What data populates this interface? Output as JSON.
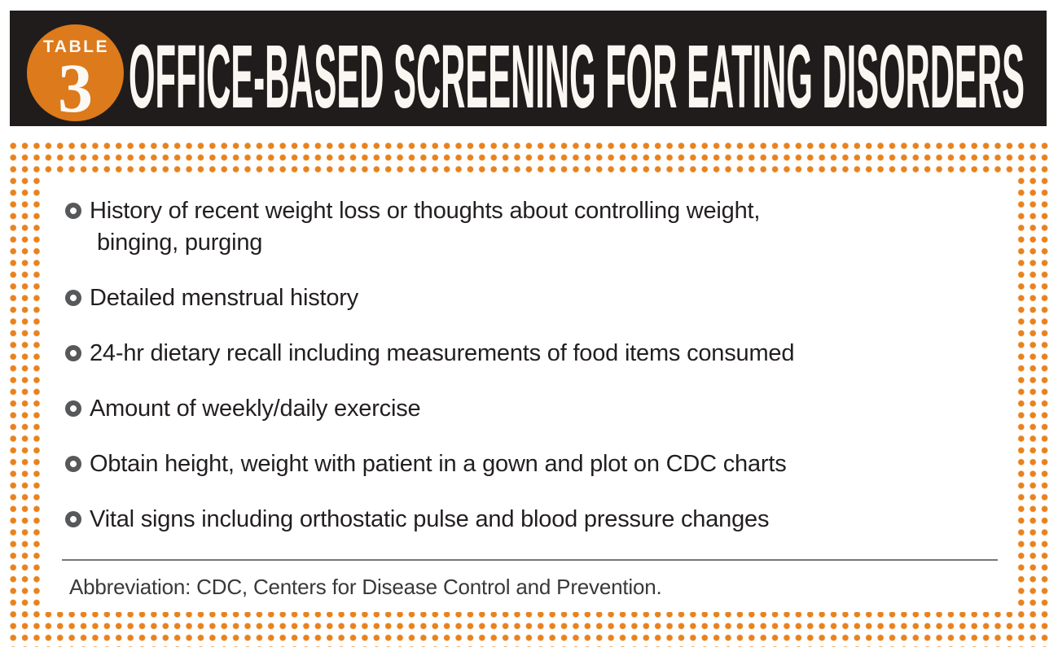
{
  "header": {
    "table_label": "TABLE",
    "table_number": "3",
    "title": "OFFICE-BASED SCREENING FOR EATING DISORDERS"
  },
  "list": {
    "items": [
      {
        "lines": [
          "History of recent weight loss or thoughts about controlling weight,",
          "binging, purging"
        ]
      },
      {
        "lines": [
          "Detailed menstrual history"
        ]
      },
      {
        "lines": [
          "24-hr dietary recall including measurements of food items consumed"
        ]
      },
      {
        "lines": [
          "Amount of weekly/daily exercise"
        ]
      },
      {
        "lines": [
          "Obtain height, weight with patient in a gown and plot on CDC charts"
        ]
      },
      {
        "lines": [
          "Vital signs including orthostatic pulse and blood pressure changes"
        ]
      }
    ]
  },
  "footer": {
    "abbreviation": "Abbreviation: CDC, Centers for Disease Control and Prevention."
  },
  "colors": {
    "accent_orange_dots": "#E8821E",
    "badge_orange": "#DC7A1C",
    "header_black": "#201C1B",
    "body_text": "#231F20",
    "bullet_ring_gray": "#57585A",
    "rule_gray": "#77787B"
  }
}
